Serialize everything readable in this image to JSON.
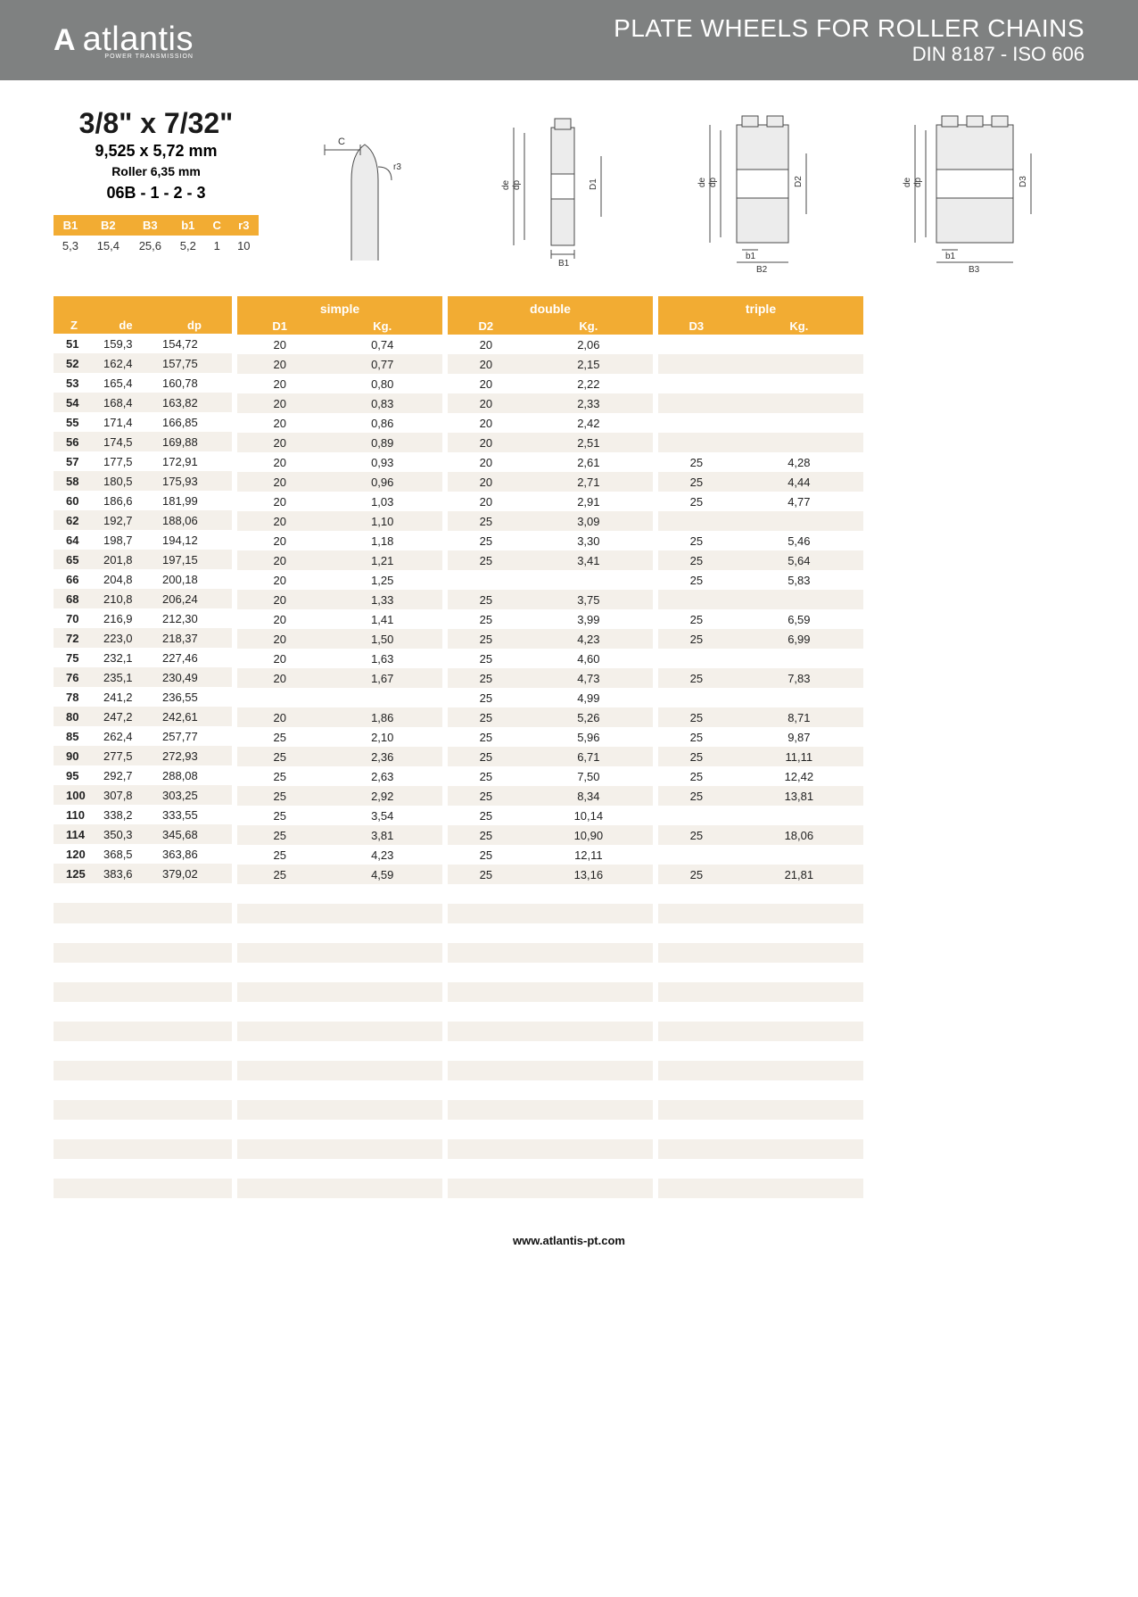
{
  "header": {
    "logo_mark": "A",
    "logo_text": "atlantis",
    "logo_sub": "POWER TRANSMISSION",
    "title_line1": "PLATE WHEELS FOR ROLLER CHAINS",
    "title_line2": "DIN 8187 - ISO 606",
    "bg_color": "#7f8181",
    "text_color": "#ffffff"
  },
  "spec": {
    "size_in": "3/8\" x 7/32\"",
    "size_mm": "9,525 x 5,72 mm",
    "roller": "Roller 6,35 mm",
    "code": "06B - 1 - 2 - 3"
  },
  "param_table": {
    "headers": [
      "B1",
      "B2",
      "B3",
      "b1",
      "C",
      "r3"
    ],
    "values": [
      "5,3",
      "15,4",
      "25,6",
      "5,2",
      "1",
      "10"
    ]
  },
  "diagram_labels": {
    "c": "C",
    "r3": "r3",
    "de": "de",
    "dp": "dp",
    "D1": "D1",
    "D2": "D2",
    "D3": "D3",
    "B1": "B1",
    "b1": "b1",
    "B2": "B2",
    "B3": "B3"
  },
  "colors": {
    "accent": "#f2ac33",
    "row_alt": "#f4f0ea",
    "row_base": "#ffffff",
    "diagram_fill": "#ececec",
    "diagram_stroke": "#4a4a4a"
  },
  "columns": {
    "left": [
      "Z",
      "de",
      "dp"
    ],
    "simple_group": "simple",
    "simple": [
      "D1",
      "Kg."
    ],
    "double_group": "double",
    "double": [
      "D2",
      "Kg."
    ],
    "triple_group": "triple",
    "triple": [
      "D3",
      "Kg."
    ]
  },
  "rows": [
    {
      "Z": "51",
      "de": "159,3",
      "dp": "154,72",
      "D1": "20",
      "Kg1": "0,74",
      "D2": "20",
      "Kg2": "2,06",
      "D3": "",
      "Kg3": ""
    },
    {
      "Z": "52",
      "de": "162,4",
      "dp": "157,75",
      "D1": "20",
      "Kg1": "0,77",
      "D2": "20",
      "Kg2": "2,15",
      "D3": "",
      "Kg3": ""
    },
    {
      "Z": "53",
      "de": "165,4",
      "dp": "160,78",
      "D1": "20",
      "Kg1": "0,80",
      "D2": "20",
      "Kg2": "2,22",
      "D3": "",
      "Kg3": ""
    },
    {
      "Z": "54",
      "de": "168,4",
      "dp": "163,82",
      "D1": "20",
      "Kg1": "0,83",
      "D2": "20",
      "Kg2": "2,33",
      "D3": "",
      "Kg3": ""
    },
    {
      "Z": "55",
      "de": "171,4",
      "dp": "166,85",
      "D1": "20",
      "Kg1": "0,86",
      "D2": "20",
      "Kg2": "2,42",
      "D3": "",
      "Kg3": ""
    },
    {
      "Z": "56",
      "de": "174,5",
      "dp": "169,88",
      "D1": "20",
      "Kg1": "0,89",
      "D2": "20",
      "Kg2": "2,51",
      "D3": "",
      "Kg3": ""
    },
    {
      "Z": "57",
      "de": "177,5",
      "dp": "172,91",
      "D1": "20",
      "Kg1": "0,93",
      "D2": "20",
      "Kg2": "2,61",
      "D3": "25",
      "Kg3": "4,28"
    },
    {
      "Z": "58",
      "de": "180,5",
      "dp": "175,93",
      "D1": "20",
      "Kg1": "0,96",
      "D2": "20",
      "Kg2": "2,71",
      "D3": "25",
      "Kg3": "4,44"
    },
    {
      "Z": "60",
      "de": "186,6",
      "dp": "181,99",
      "D1": "20",
      "Kg1": "1,03",
      "D2": "20",
      "Kg2": "2,91",
      "D3": "25",
      "Kg3": "4,77"
    },
    {
      "Z": "62",
      "de": "192,7",
      "dp": "188,06",
      "D1": "20",
      "Kg1": "1,10",
      "D2": "25",
      "Kg2": "3,09",
      "D3": "",
      "Kg3": ""
    },
    {
      "Z": "64",
      "de": "198,7",
      "dp": "194,12",
      "D1": "20",
      "Kg1": "1,18",
      "D2": "25",
      "Kg2": "3,30",
      "D3": "25",
      "Kg3": "5,46"
    },
    {
      "Z": "65",
      "de": "201,8",
      "dp": "197,15",
      "D1": "20",
      "Kg1": "1,21",
      "D2": "25",
      "Kg2": "3,41",
      "D3": "25",
      "Kg3": "5,64"
    },
    {
      "Z": "66",
      "de": "204,8",
      "dp": "200,18",
      "D1": "20",
      "Kg1": "1,25",
      "D2": "",
      "Kg2": "",
      "D3": "25",
      "Kg3": "5,83"
    },
    {
      "Z": "68",
      "de": "210,8",
      "dp": "206,24",
      "D1": "20",
      "Kg1": "1,33",
      "D2": "25",
      "Kg2": "3,75",
      "D3": "",
      "Kg3": ""
    },
    {
      "Z": "70",
      "de": "216,9",
      "dp": "212,30",
      "D1": "20",
      "Kg1": "1,41",
      "D2": "25",
      "Kg2": "3,99",
      "D3": "25",
      "Kg3": "6,59"
    },
    {
      "Z": "72",
      "de": "223,0",
      "dp": "218,37",
      "D1": "20",
      "Kg1": "1,50",
      "D2": "25",
      "Kg2": "4,23",
      "D3": "25",
      "Kg3": "6,99"
    },
    {
      "Z": "75",
      "de": "232,1",
      "dp": "227,46",
      "D1": "20",
      "Kg1": "1,63",
      "D2": "25",
      "Kg2": "4,60",
      "D3": "",
      "Kg3": ""
    },
    {
      "Z": "76",
      "de": "235,1",
      "dp": "230,49",
      "D1": "20",
      "Kg1": "1,67",
      "D2": "25",
      "Kg2": "4,73",
      "D3": "25",
      "Kg3": "7,83"
    },
    {
      "Z": "78",
      "de": "241,2",
      "dp": "236,55",
      "D1": "",
      "Kg1": "",
      "D2": "25",
      "Kg2": "4,99",
      "D3": "",
      "Kg3": ""
    },
    {
      "Z": "80",
      "de": "247,2",
      "dp": "242,61",
      "D1": "20",
      "Kg1": "1,86",
      "D2": "25",
      "Kg2": "5,26",
      "D3": "25",
      "Kg3": "8,71"
    },
    {
      "Z": "85",
      "de": "262,4",
      "dp": "257,77",
      "D1": "25",
      "Kg1": "2,10",
      "D2": "25",
      "Kg2": "5,96",
      "D3": "25",
      "Kg3": "9,87"
    },
    {
      "Z": "90",
      "de": "277,5",
      "dp": "272,93",
      "D1": "25",
      "Kg1": "2,36",
      "D2": "25",
      "Kg2": "6,71",
      "D3": "25",
      "Kg3": "11,11"
    },
    {
      "Z": "95",
      "de": "292,7",
      "dp": "288,08",
      "D1": "25",
      "Kg1": "2,63",
      "D2": "25",
      "Kg2": "7,50",
      "D3": "25",
      "Kg3": "12,42"
    },
    {
      "Z": "100",
      "de": "307,8",
      "dp": "303,25",
      "D1": "25",
      "Kg1": "2,92",
      "D2": "25",
      "Kg2": "8,34",
      "D3": "25",
      "Kg3": "13,81"
    },
    {
      "Z": "110",
      "de": "338,2",
      "dp": "333,55",
      "D1": "25",
      "Kg1": "3,54",
      "D2": "25",
      "Kg2": "10,14",
      "D3": "",
      "Kg3": ""
    },
    {
      "Z": "114",
      "de": "350,3",
      "dp": "345,68",
      "D1": "25",
      "Kg1": "3,81",
      "D2": "25",
      "Kg2": "10,90",
      "D3": "25",
      "Kg3": "18,06"
    },
    {
      "Z": "120",
      "de": "368,5",
      "dp": "363,86",
      "D1": "25",
      "Kg1": "4,23",
      "D2": "25",
      "Kg2": "12,11",
      "D3": "",
      "Kg3": ""
    },
    {
      "Z": "125",
      "de": "383,6",
      "dp": "379,02",
      "D1": "25",
      "Kg1": "4,59",
      "D2": "25",
      "Kg2": "13,16",
      "D3": "25",
      "Kg3": "21,81"
    }
  ],
  "empty_rows_after": 16,
  "footer": "www.atlantis-pt.com"
}
